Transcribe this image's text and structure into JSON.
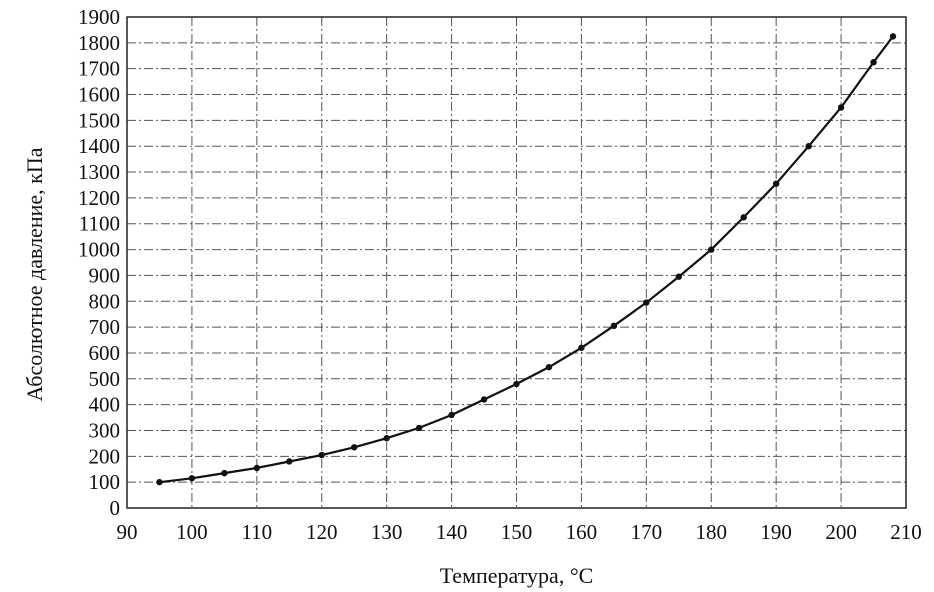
{
  "chart_data": {
    "type": "line",
    "title": "",
    "xlabel": "Температура, °С",
    "ylabel": "Абсолютное давление, кПа",
    "xlim": [
      90,
      210
    ],
    "ylim": [
      0,
      1900
    ],
    "x_ticks": [
      90,
      100,
      110,
      120,
      130,
      140,
      150,
      160,
      170,
      180,
      190,
      200,
      210
    ],
    "y_ticks": [
      0,
      100,
      200,
      300,
      400,
      500,
      600,
      700,
      800,
      900,
      1000,
      1100,
      1200,
      1300,
      1400,
      1500,
      1600,
      1700,
      1800,
      1900
    ],
    "grid": true,
    "marker": "dot",
    "colors": {
      "line": "#111111",
      "grid": "#555555"
    },
    "series": [
      {
        "x": [
          95,
          100,
          105,
          110,
          115,
          120,
          125,
          130,
          135,
          140,
          145,
          150,
          155,
          160,
          165,
          170,
          175,
          180,
          185,
          190,
          195,
          200,
          205,
          208
        ],
        "y": [
          100,
          115,
          135,
          155,
          180,
          205,
          235,
          270,
          310,
          360,
          420,
          480,
          545,
          620,
          705,
          795,
          895,
          1000,
          1125,
          1255,
          1400,
          1550,
          1725,
          1825
        ]
      }
    ]
  }
}
